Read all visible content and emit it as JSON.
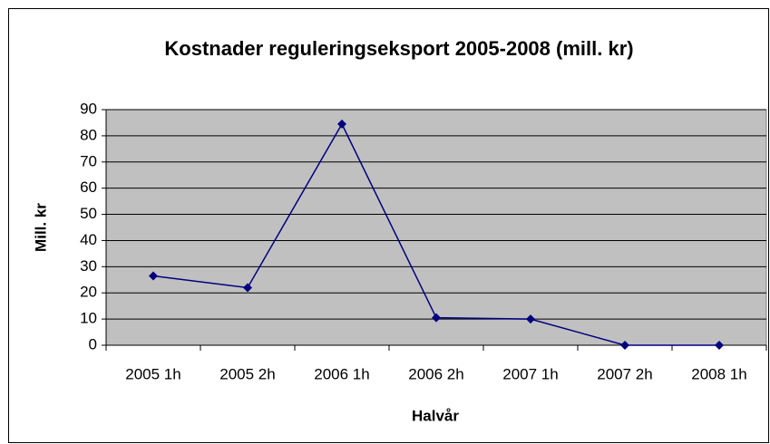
{
  "chart_data": {
    "type": "line",
    "title": "Kostnader reguleringseksport 2005-2008 (mill. kr)",
    "x_label": "Halvår",
    "y_label": "Mill. kr",
    "categories": [
      "2005 1h",
      "2005 2h",
      "2006 1h",
      "2006 2h",
      "2007 1h",
      "2007 2h",
      "2008 1h"
    ],
    "values": [
      26.5,
      22,
      84.5,
      10.5,
      10,
      0,
      0
    ],
    "color": "#000080",
    "ylim": [
      0,
      90
    ],
    "yticks": [
      0,
      10,
      20,
      30,
      40,
      50,
      60,
      70,
      80,
      90
    ],
    "grid": true
  }
}
